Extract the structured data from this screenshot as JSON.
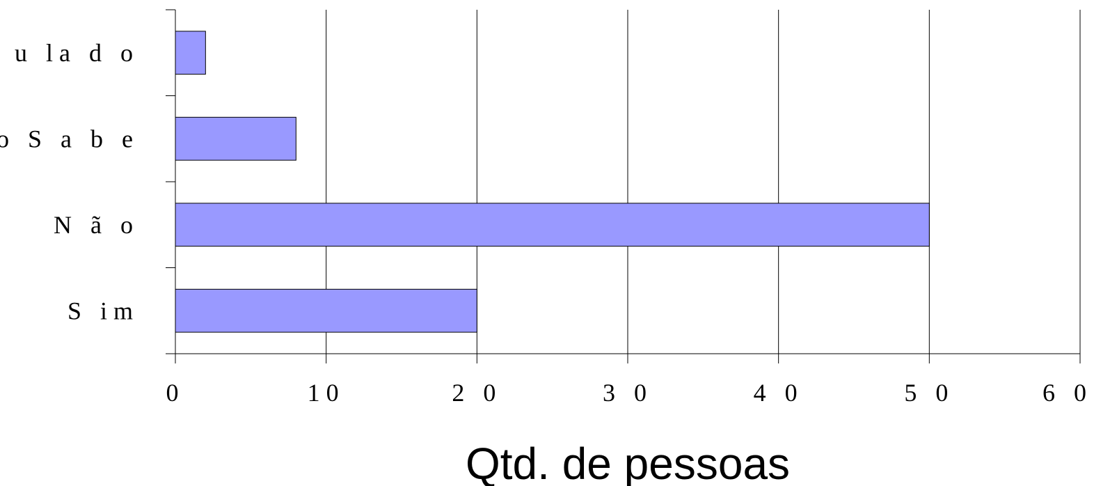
{
  "chart_data": {
    "type": "bar",
    "orientation": "horizontal",
    "categories": [
      "Sim",
      "Não",
      "Não Sabe",
      "Anulado"
    ],
    "category_labels": [
      "S im",
      "N ã o",
      "N ã o  S a b e",
      "A n u la d o"
    ],
    "values": [
      20,
      50,
      8,
      2
    ],
    "xlim": [
      0,
      60
    ],
    "xticks": [
      0,
      10,
      20,
      30,
      40,
      50,
      60
    ],
    "xtick_labels": [
      "0",
      "10",
      "2 0",
      "3 0",
      "4 0",
      "5 0",
      "6 0"
    ],
    "xlabel": "Qtd. de pessoas",
    "ylabel": "",
    "title": "",
    "grid": "vertical",
    "bar_color": "#9999ff",
    "bar_edge_color": "#000000",
    "legend": false
  }
}
